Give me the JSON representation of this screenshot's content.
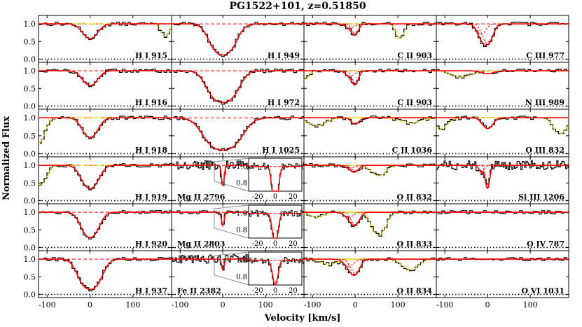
{
  "chart_data": {
    "type": "line",
    "title": "PG1522+101,  z=0.51850",
    "xlabel": "Velocity [km/s]",
    "ylabel": "Normalized Flux",
    "xlim": [
      -120,
      190
    ],
    "ylim": [
      -0.05,
      1.2
    ],
    "xticks": [
      -100,
      0,
      100
    ],
    "yticks": [
      0.0,
      0.5,
      1.0
    ],
    "xtick_labels": [
      "-100",
      "0",
      "100"
    ],
    "ytick_labels": [
      "0.0",
      "0.5",
      "1.0"
    ],
    "continuum_level": 1.0,
    "series_styles": {
      "data": "black histogram",
      "fit": "red solid line",
      "components": "red dashed lines",
      "contamination": "yellow dashed/dotted lines"
    },
    "grid": {
      "rows": 6,
      "cols": 4
    },
    "panels": [
      {
        "label": "H I 915",
        "col": 0,
        "row": 0,
        "components": [
          {
            "v": 0,
            "depth": 0.42,
            "b": 22
          }
        ],
        "contam": [
          {
            "v": 175,
            "depth": 0.35,
            "b": 12
          }
        ]
      },
      {
        "label": "H I 916",
        "col": 0,
        "row": 1,
        "components": [
          {
            "v": 0,
            "depth": 0.42,
            "b": 22
          }
        ]
      },
      {
        "label": "H I 918",
        "col": 0,
        "row": 2,
        "components": [
          {
            "v": 0,
            "depth": 0.55,
            "b": 22
          }
        ],
        "contam": [
          {
            "v": -125,
            "depth": 0.75,
            "b": 20
          }
        ]
      },
      {
        "label": "H I 919",
        "col": 0,
        "row": 3,
        "components": [
          {
            "v": 0,
            "depth": 0.66,
            "b": 23
          }
        ],
        "contam": [
          {
            "v": -115,
            "depth": 0.55,
            "b": 18
          }
        ]
      },
      {
        "label": "H I 920",
        "col": 0,
        "row": 4,
        "components": [
          {
            "v": 0,
            "depth": 0.72,
            "b": 23
          }
        ]
      },
      {
        "label": "H I 937",
        "col": 0,
        "row": 5,
        "components": [
          {
            "v": 0,
            "depth": 0.86,
            "b": 27
          }
        ]
      },
      {
        "label": "H I 949",
        "col": 1,
        "row": 0,
        "components": [
          {
            "v": 0,
            "depth": 0.88,
            "b": 30
          }
        ]
      },
      {
        "label": "H I 972",
        "col": 1,
        "row": 1,
        "components": [
          {
            "v": 0,
            "depth": 0.9,
            "b": 34
          }
        ]
      },
      {
        "label": "H I 1025",
        "col": 1,
        "row": 2,
        "components": [
          {
            "v": 0,
            "depth": 0.9,
            "b": 42
          }
        ]
      },
      {
        "label": "Mg II 2796",
        "col": 1,
        "row": 3,
        "components": [
          {
            "v": 0,
            "depth": 0.55,
            "b": 4
          }
        ],
        "inset": true,
        "noisy": true
      },
      {
        "label": "Mg II 2803",
        "col": 1,
        "row": 4,
        "components": [
          {
            "v": 0,
            "depth": 0.38,
            "b": 4
          }
        ],
        "inset": true
      },
      {
        "label": "Fe II 2382",
        "col": 1,
        "row": 5,
        "components": [
          {
            "v": 0,
            "depth": 0.3,
            "b": 4
          }
        ],
        "inset": true,
        "noisy": true
      },
      {
        "label": "C II 903",
        "col": 2,
        "row": 0,
        "components": [
          {
            "v": 0,
            "depth": 0.28,
            "b": 10
          },
          {
            "v": -12,
            "depth": 0.12,
            "b": 14
          }
        ],
        "contam": [
          {
            "v": 105,
            "depth": 0.42,
            "b": 12
          }
        ]
      },
      {
        "label": "C II 903",
        "col": 2,
        "row": 1,
        "components": [
          {
            "v": 0,
            "depth": 0.35,
            "b": 10
          },
          {
            "v": -12,
            "depth": 0.15,
            "b": 14
          }
        ],
        "contam": [
          {
            "v": -120,
            "depth": 0.25,
            "b": 14
          }
        ]
      },
      {
        "label": "C II 1036",
        "col": 2,
        "row": 2,
        "components": [
          {
            "v": 0,
            "depth": 0.18,
            "b": 12
          }
        ],
        "contam": [
          {
            "v": -90,
            "depth": 0.22,
            "b": 30
          },
          {
            "v": 130,
            "depth": 0.15,
            "b": 30
          }
        ]
      },
      {
        "label": "O II 832",
        "col": 2,
        "row": 3,
        "components": [
          {
            "v": 0,
            "depth": 0.16,
            "b": 12
          },
          {
            "v": -12,
            "depth": 0.08,
            "b": 14
          }
        ],
        "contam": [
          {
            "v": 55,
            "depth": 0.3,
            "b": 22
          }
        ]
      },
      {
        "label": "O II 833",
        "col": 2,
        "row": 4,
        "components": [
          {
            "v": 0,
            "depth": 0.35,
            "b": 13
          },
          {
            "v": -15,
            "depth": 0.15,
            "b": 14
          }
        ],
        "contam": [
          {
            "v": 55,
            "depth": 0.65,
            "b": 20
          },
          {
            "v": -90,
            "depth": 0.15,
            "b": 20
          }
        ]
      },
      {
        "label": "O II 834",
        "col": 2,
        "row": 5,
        "components": [
          {
            "v": 0,
            "depth": 0.4,
            "b": 14
          },
          {
            "v": -15,
            "depth": 0.2,
            "b": 16
          }
        ],
        "contam": [
          {
            "v": 130,
            "depth": 0.3,
            "b": 25
          },
          {
            "v": -60,
            "depth": 0.15,
            "b": 25
          }
        ]
      },
      {
        "label": "C III 977",
        "col": 3,
        "row": 0,
        "components": [
          {
            "v": 0,
            "depth": 0.55,
            "b": 15
          },
          {
            "v": -15,
            "depth": 0.3,
            "b": 14
          }
        ]
      },
      {
        "label": "N III 989",
        "col": 3,
        "row": 1,
        "components": [
          {
            "v": 0,
            "depth": 0.08,
            "b": 20
          }
        ],
        "contam": [
          {
            "v": -60,
            "depth": 0.18,
            "b": 30
          }
        ]
      },
      {
        "label": "O III 832",
        "col": 3,
        "row": 2,
        "components": [
          {
            "v": 0,
            "depth": 0.3,
            "b": 16
          }
        ],
        "contam": [
          {
            "v": -110,
            "depth": 0.3,
            "b": 22
          },
          {
            "v": 170,
            "depth": 0.45,
            "b": 20
          }
        ]
      },
      {
        "label": "Si III 1206",
        "col": 3,
        "row": 3,
        "components": [
          {
            "v": 0,
            "depth": 0.65,
            "b": 6
          },
          {
            "v": -14,
            "depth": 0.2,
            "b": 8
          }
        ],
        "noisy": true
      },
      {
        "label": "O IV 787",
        "col": 3,
        "row": 4,
        "components": []
      },
      {
        "label": "O VI 1031",
        "col": 3,
        "row": 5,
        "components": []
      }
    ],
    "inset": {
      "xlim": [
        -30,
        30
      ],
      "ylim": [
        0.7,
        1.1
      ],
      "xticks": [
        -20,
        0,
        20
      ],
      "xtick_labels": [
        "-20",
        "0",
        "20"
      ],
      "yticks": [
        0.8,
        1.0
      ],
      "ytick_labels": [
        "0.8",
        "1.0"
      ]
    }
  }
}
